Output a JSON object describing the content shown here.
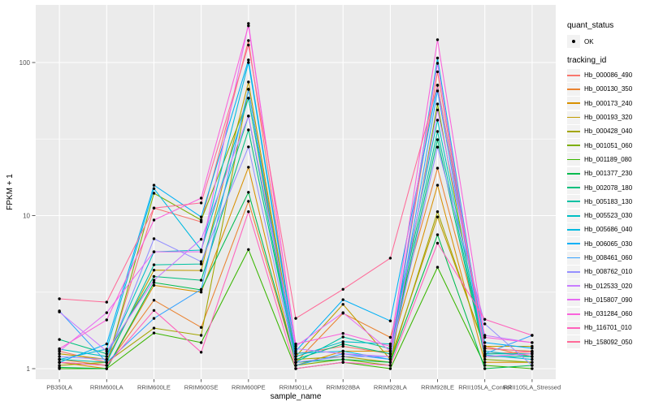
{
  "figure": {
    "background": "#FFFFFF",
    "panel_background": "#EBEBEB",
    "grid_color": "#FFFFFF",
    "tick_color": "#333333",
    "tick_label_color": "#4D4D4D",
    "point_color": "#000000"
  },
  "legend": {
    "quant_status_title": "quant_status",
    "ok_label": "OK",
    "tracking_id_title": "tracking_id"
  },
  "chart_data": {
    "type": "line",
    "title": "",
    "xlabel": "sample_name",
    "ylabel": "FPKM + 1",
    "x_axis": {
      "label": "sample_name",
      "categories": [
        "PB350LA",
        "RRIM600LA",
        "RRIM600LE",
        "RRIM600SE",
        "RRIM600PE",
        "RRIM901LA",
        "RRIM928BA",
        "RRIM928LA",
        "RRIM928LE",
        "RRII105LA_Control",
        "RRII105LA_Stressed"
      ]
    },
    "y_axis": {
      "label": "FPKM + 1",
      "scale": "log10",
      "ticks": [
        1,
        10,
        100
      ],
      "tick_labels": [
        "1",
        "10",
        "100"
      ],
      "range": [
        0.95,
        215
      ]
    },
    "grid": true,
    "legend_position": "right",
    "quant_status": "OK",
    "point_shape": "black-point",
    "series": [
      {
        "tracking_id": "Hb_000086_490",
        "color": "#F8766D",
        "values": [
          1.3,
          1.1,
          11.2,
          9.1,
          139,
          1.25,
          1.4,
          1.25,
          87.0,
          1.25,
          1.29
        ]
      },
      {
        "tracking_id": "Hb_000130_350",
        "color": "#EA8331",
        "values": [
          1.15,
          1.05,
          2.8,
          1.86,
          12.4,
          1.1,
          2.3,
          1.6,
          20.4,
          1.4,
          1.2
        ]
      },
      {
        "tracking_id": "Hb_000173_240",
        "color": "#D89000",
        "values": [
          1.1,
          1.0,
          3.5,
          3.16,
          20.7,
          1.05,
          1.3,
          1.3,
          15.8,
          1.1,
          1.1
        ]
      },
      {
        "tracking_id": "Hb_000193_320",
        "color": "#C09B00",
        "values": [
          1.25,
          1.15,
          4.4,
          4.38,
          74.6,
          1.2,
          2.63,
          1.15,
          9.8,
          1.4,
          1.4
        ]
      },
      {
        "tracking_id": "Hb_000428_040",
        "color": "#A3A500",
        "values": [
          1.05,
          1.1,
          1.84,
          1.65,
          66.8,
          1.15,
          1.2,
          1.1,
          10.6,
          1.35,
          1.3
        ]
      },
      {
        "tracking_id": "Hb_001051_060",
        "color": "#7CAE00",
        "values": [
          1.1,
          1.05,
          14.0,
          9.35,
          58.5,
          1.05,
          1.15,
          1.05,
          53.6,
          1.15,
          1.1
        ]
      },
      {
        "tracking_id": "Hb_001189_080",
        "color": "#39B600",
        "values": [
          1.0,
          1.0,
          1.71,
          1.48,
          6.0,
          1.0,
          1.1,
          1.0,
          4.6,
          1.05,
          1.0
        ]
      },
      {
        "tracking_id": "Hb_001377_230",
        "color": "#00BB4E",
        "values": [
          1.02,
          1.0,
          3.65,
          3.27,
          14.2,
          1.1,
          1.15,
          1.1,
          7.5,
          1.0,
          1.05
        ]
      },
      {
        "tracking_id": "Hb_002078_180",
        "color": "#00BF7D",
        "values": [
          1.55,
          1.25,
          4.0,
          3.78,
          36.3,
          1.15,
          1.45,
          1.25,
          31.3,
          1.2,
          1.2
        ]
      },
      {
        "tracking_id": "Hb_005183_130",
        "color": "#00C1A3",
        "values": [
          1.15,
          1.1,
          4.77,
          4.83,
          44.7,
          1.1,
          1.61,
          1.35,
          35.4,
          1.25,
          1.25
        ]
      },
      {
        "tracking_id": "Hb_005523_030",
        "color": "#00BFC4",
        "values": [
          1.34,
          1.2,
          5.8,
          5.95,
          58.5,
          1.2,
          1.5,
          1.45,
          42.0,
          1.3,
          1.2
        ]
      },
      {
        "tracking_id": "Hb_005686_040",
        "color": "#00BAE0",
        "values": [
          1.15,
          1.34,
          15.0,
          5.95,
          100,
          1.26,
          1.3,
          1.15,
          107,
          1.23,
          1.15
        ]
      },
      {
        "tracking_id": "Hb_006065_030",
        "color": "#00B0F6",
        "values": [
          1.1,
          1.45,
          15.8,
          9.8,
          104,
          1.3,
          2.82,
          2.05,
          71.0,
          1.48,
          1.36
        ]
      },
      {
        "tracking_id": "Hb_008461_060",
        "color": "#35A2FF",
        "values": [
          2.38,
          1.1,
          2.13,
          3.3,
          66.8,
          1.05,
          1.25,
          1.15,
          65.2,
          1.25,
          1.65
        ]
      },
      {
        "tracking_id": "Hb_008762_010",
        "color": "#9590FF",
        "values": [
          1.2,
          1.15,
          7.06,
          5.0,
          28.1,
          1.1,
          1.2,
          1.2,
          28.0,
          1.96,
          1.05
        ]
      },
      {
        "tracking_id": "Hb_012533_020",
        "color": "#C77CFF",
        "values": [
          2.35,
          1.3,
          3.78,
          7.0,
          44.7,
          1.35,
          1.25,
          1.2,
          49.0,
          1.65,
          1.48
        ]
      },
      {
        "tracking_id": "Hb_015807_090",
        "color": "#E76BF3",
        "values": [
          1.3,
          2.32,
          5.8,
          5.8,
          180,
          1.4,
          2.32,
          1.3,
          98.8,
          1.2,
          1.25
        ]
      },
      {
        "tracking_id": "Hb_031284_060",
        "color": "#FA62DB",
        "values": [
          1.35,
          2.08,
          9.35,
          13.0,
          174,
          1.45,
          1.7,
          1.4,
          141,
          1.6,
          1.48
        ]
      },
      {
        "tracking_id": "Hb_116701_010",
        "color": "#FF62BC",
        "values": [
          1.1,
          1.05,
          2.4,
          1.28,
          10.6,
          1.0,
          1.1,
          1.05,
          6.6,
          2.1,
          1.65
        ]
      },
      {
        "tracking_id": "Hb_158092_050",
        "color": "#FF6A98",
        "values": [
          2.86,
          2.72,
          11.2,
          12.1,
          130,
          2.13,
          3.3,
          5.27,
          71.0,
          1.36,
          1.29
        ]
      }
    ]
  }
}
